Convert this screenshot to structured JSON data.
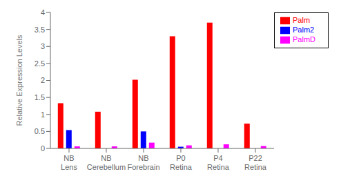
{
  "chart_data": {
    "type": "bar",
    "categories": [
      "NB\nLens",
      "NB\nCerebellum",
      "NB\nForebrain",
      "P0\nRetina",
      "P4\nRetina",
      "P22\nRetina"
    ],
    "series": [
      {
        "name": "Palm",
        "color": "#ff0000",
        "values": [
          1.33,
          1.08,
          2.02,
          3.3,
          3.7,
          0.73
        ]
      },
      {
        "name": "Palm2",
        "color": "#0000ff",
        "values": [
          0.54,
          0.0,
          0.5,
          0.05,
          0.0,
          0.0
        ]
      },
      {
        "name": "PalmD",
        "color": "#ff00ff",
        "values": [
          0.06,
          0.06,
          0.17,
          0.09,
          0.12,
          0.07
        ]
      }
    ],
    "ylabel": "Relative Expression Levels",
    "ylim": [
      0,
      4
    ],
    "yticks": [
      0,
      0.5,
      1,
      1.5,
      2,
      2.5,
      3,
      3.5,
      4
    ],
    "grid": false,
    "legend": "upper right"
  }
}
